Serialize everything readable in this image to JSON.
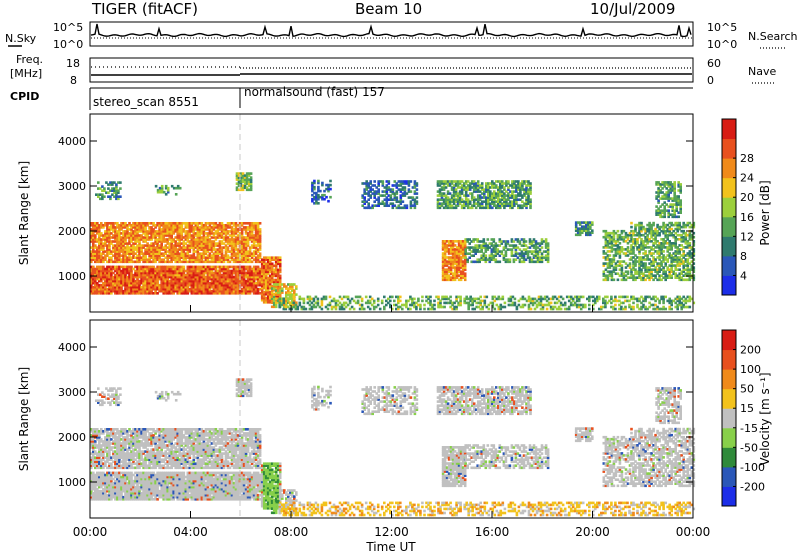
{
  "header": {
    "station": "TIGER (fitACF)",
    "beam": "Beam 10",
    "date": "10/Jul/2009"
  },
  "noise_panel": {
    "left_label": "N.Sky",
    "right_label": "N.Search",
    "left_ticks": [
      "10^5",
      "10^0"
    ],
    "right_ticks": [
      "10^5",
      "10^0"
    ]
  },
  "freq_panel": {
    "left_label_1": "Freq.",
    "left_label_2": "[MHz]",
    "left_ticks": [
      "18",
      "8"
    ],
    "right_label": "Nave",
    "right_ticks": [
      "60",
      "0"
    ]
  },
  "cpid_panel": {
    "label": "CPID",
    "segments": [
      {
        "name": "stereo_scan 8551",
        "start_hour": 0,
        "end_hour": 6
      },
      {
        "name": "normalsound (fast) 157",
        "start_hour": 6,
        "end_hour": 24
      }
    ]
  },
  "chart_data": [
    {
      "type": "heatmap",
      "title": "",
      "xlabel": "",
      "ylabel": "Slant Range [km]",
      "xlim_hours": [
        0,
        24
      ],
      "ylim_km": [
        200,
        4600
      ],
      "y_ticks": [
        "1000",
        "2000",
        "3000",
        "4000"
      ],
      "x_tick_labels": [
        "00:00",
        "04:00",
        "08:00",
        "12:00",
        "16:00",
        "20:00",
        "00:00"
      ],
      "colorbar": {
        "label": "Power [dB]",
        "ticks": [
          "4",
          "8",
          "12",
          "16",
          "20",
          "24",
          "28"
        ],
        "colors": [
          "#1c2ee8",
          "#2a57b8",
          "#2f7a6e",
          "#56a456",
          "#9ccf3c",
          "#f2c21c",
          "#f08a1a",
          "#e8501e",
          "#d81c14"
        ]
      }
    },
    {
      "type": "heatmap",
      "title": "",
      "xlabel": "Time UT",
      "ylabel": "Slant Range [km]",
      "xlim_hours": [
        0,
        24
      ],
      "ylim_km": [
        200,
        4600
      ],
      "y_ticks": [
        "1000",
        "2000",
        "3000",
        "4000"
      ],
      "x_tick_labels": [
        "00:00",
        "04:00",
        "08:00",
        "12:00",
        "16:00",
        "20:00",
        "00:00"
      ],
      "colorbar": {
        "label": "Velocity [m s⁻¹]",
        "ticks": [
          "200",
          "100",
          "50",
          "15",
          "-15",
          "-50",
          "-100",
          "-200"
        ],
        "colors": [
          "#1c2ee8",
          "#2a57b8",
          "#2f8a3a",
          "#88d04a",
          "#c0c0c0",
          "#f2c21c",
          "#f08a1a",
          "#e8501e",
          "#d81c14"
        ]
      }
    }
  ]
}
